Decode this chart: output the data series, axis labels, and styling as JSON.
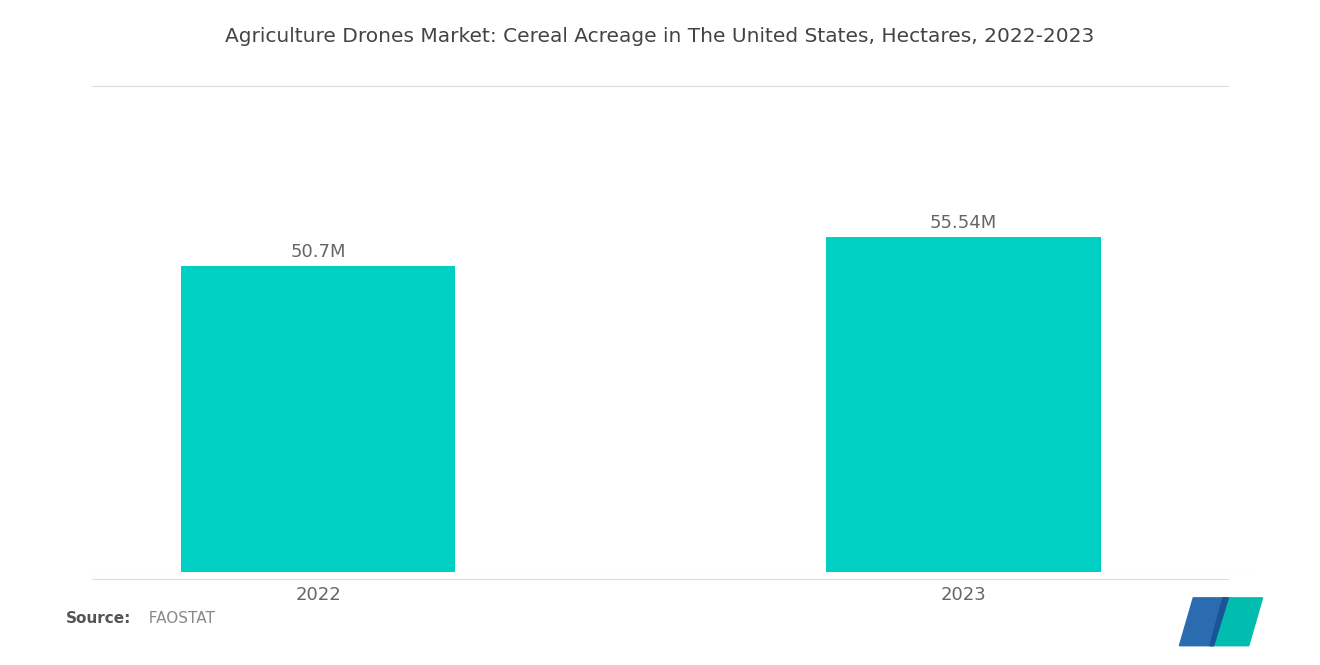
{
  "title": "Agriculture Drones Market: Cereal Acreage in The United States, Hectares, 2022-2023",
  "categories": [
    "2022",
    "2023"
  ],
  "values": [
    50.7,
    55.54
  ],
  "labels": [
    "50.7M",
    "55.54M"
  ],
  "bar_color": "#00D0C4",
  "background_color": "#ffffff",
  "title_fontsize": 14.5,
  "label_fontsize": 13,
  "tick_fontsize": 13,
  "source_bold": "Source:",
  "source_normal": "  FAOSTAT",
  "ylim": [
    0,
    75
  ],
  "bar_positions": [
    1,
    3
  ],
  "bar_width": 0.85,
  "xlim": [
    0.3,
    3.9
  ]
}
